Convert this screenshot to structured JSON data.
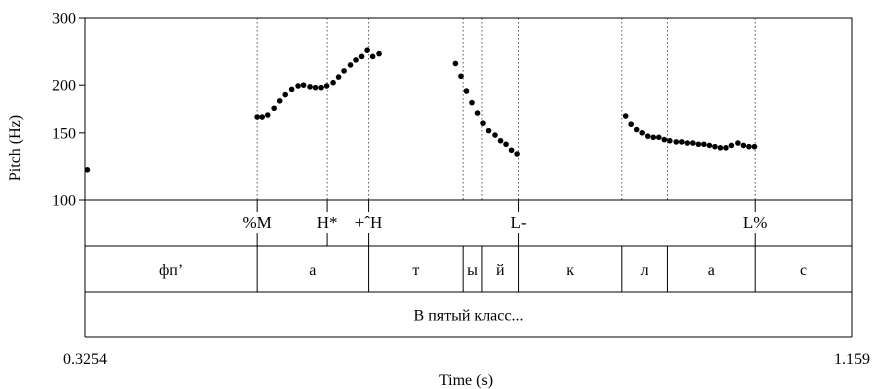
{
  "chart_data": {
    "type": "scatter",
    "xlabel": "Time (s)",
    "ylabel": "Pitch (Hz)",
    "xlim": [
      0.3254,
      1.159
    ],
    "ylim": [
      100,
      300
    ],
    "yscale": "log",
    "x_tick_labels": [
      "0.3254",
      "1.159"
    ],
    "y_ticks": [
      100,
      150,
      200,
      300
    ],
    "pitch_points": [
      {
        "t": 0.328,
        "hz": 120
      },
      {
        "t": 0.5125,
        "hz": 165
      },
      {
        "t": 0.518,
        "hz": 165
      },
      {
        "t": 0.524,
        "hz": 167
      },
      {
        "t": 0.531,
        "hz": 174
      },
      {
        "t": 0.537,
        "hz": 182
      },
      {
        "t": 0.543,
        "hz": 189
      },
      {
        "t": 0.55,
        "hz": 195
      },
      {
        "t": 0.557,
        "hz": 199
      },
      {
        "t": 0.563,
        "hz": 200
      },
      {
        "t": 0.57,
        "hz": 198
      },
      {
        "t": 0.576,
        "hz": 197
      },
      {
        "t": 0.582,
        "hz": 197
      },
      {
        "t": 0.588,
        "hz": 199
      },
      {
        "t": 0.595,
        "hz": 203
      },
      {
        "t": 0.601,
        "hz": 210
      },
      {
        "t": 0.607,
        "hz": 218
      },
      {
        "t": 0.614,
        "hz": 226
      },
      {
        "t": 0.62,
        "hz": 233
      },
      {
        "t": 0.626,
        "hz": 238
      },
      {
        "t": 0.632,
        "hz": 247
      },
      {
        "t": 0.638,
        "hz": 238
      },
      {
        "t": 0.645,
        "hz": 242
      },
      {
        "t": 0.728,
        "hz": 228
      },
      {
        "t": 0.734,
        "hz": 211
      },
      {
        "t": 0.74,
        "hz": 193
      },
      {
        "t": 0.746,
        "hz": 180
      },
      {
        "t": 0.752,
        "hz": 169
      },
      {
        "t": 0.758,
        "hz": 159
      },
      {
        "t": 0.764,
        "hz": 152
      },
      {
        "t": 0.771,
        "hz": 148
      },
      {
        "t": 0.777,
        "hz": 143
      },
      {
        "t": 0.783,
        "hz": 140
      },
      {
        "t": 0.789,
        "hz": 135
      },
      {
        "t": 0.795,
        "hz": 132
      },
      {
        "t": 0.913,
        "hz": 166
      },
      {
        "t": 0.919,
        "hz": 158
      },
      {
        "t": 0.925,
        "hz": 153
      },
      {
        "t": 0.931,
        "hz": 150
      },
      {
        "t": 0.937,
        "hz": 147
      },
      {
        "t": 0.943,
        "hz": 146
      },
      {
        "t": 0.949,
        "hz": 146
      },
      {
        "t": 0.955,
        "hz": 144
      },
      {
        "t": 0.961,
        "hz": 143
      },
      {
        "t": 0.968,
        "hz": 142
      },
      {
        "t": 0.974,
        "hz": 142
      },
      {
        "t": 0.98,
        "hz": 141
      },
      {
        "t": 0.986,
        "hz": 141
      },
      {
        "t": 0.992,
        "hz": 140
      },
      {
        "t": 0.998,
        "hz": 140
      },
      {
        "t": 1.004,
        "hz": 139
      },
      {
        "t": 1.01,
        "hz": 138
      },
      {
        "t": 1.016,
        "hz": 137
      },
      {
        "t": 1.022,
        "hz": 137
      },
      {
        "t": 1.028,
        "hz": 139
      },
      {
        "t": 1.035,
        "hz": 141
      },
      {
        "t": 1.041,
        "hz": 139
      },
      {
        "t": 1.047,
        "hz": 138
      },
      {
        "t": 1.053,
        "hz": 138
      }
    ],
    "tones": [
      {
        "t": 0.5125,
        "label": "%M"
      },
      {
        "t": 0.5885,
        "label": "H*"
      },
      {
        "t": 0.6336,
        "label": "+ˆH"
      },
      {
        "t": 0.7966,
        "label": "L-"
      },
      {
        "t": 1.0538,
        "label": "L%"
      }
    ],
    "segments": {
      "boundaries": [
        0.3254,
        0.5125,
        0.6336,
        0.7364,
        0.7568,
        0.7966,
        0.9088,
        0.9584,
        1.0538,
        1.159
      ],
      "labels": [
        "фп’",
        "а",
        "т",
        "ы",
        "й",
        "к",
        "л",
        "а",
        "с"
      ]
    },
    "phrase": {
      "start": 0.3254,
      "end": 1.159,
      "label": "В пятый класс..."
    },
    "dotted_guides": [
      0.5125,
      0.5885,
      0.6336,
      0.7364,
      0.7568,
      0.7966,
      0.9088,
      0.9584,
      1.0538
    ]
  }
}
